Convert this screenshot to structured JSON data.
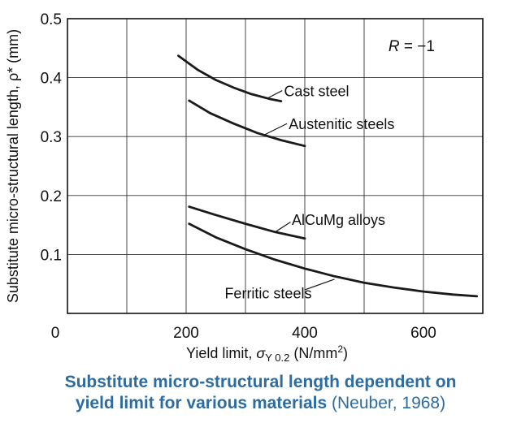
{
  "caption": {
    "line1": "Substitute micro-structural length dependent on",
    "line2_bold": "yield limit for various materials",
    "line2_citation": " (Neuber, 1968)"
  },
  "chart_data": {
    "type": "line",
    "title": "",
    "xlabel": {
      "main": "Yield limit, ",
      "symbol": "σ",
      "subscript": "Y 0.2",
      "unit_open": " (N/mm",
      "unit_exp": "2",
      "unit_close": ")"
    },
    "ylabel": "Substitute micro-structural length, ρ* (mm)",
    "xlim": [
      0,
      700
    ],
    "ylim": [
      0,
      0.5
    ],
    "xticks": [
      0,
      200,
      400,
      600
    ],
    "xtick_labels": [
      "0",
      "200",
      "400",
      "600"
    ],
    "yticks": [
      0.1,
      0.2,
      0.3,
      0.4,
      0.5
    ],
    "ytick_labels": [
      "0.1",
      "0.2",
      "0.3",
      "0.4",
      "0.5"
    ],
    "grid": true,
    "grid_x_step": 100,
    "grid_y_step": 0.1,
    "annotation": {
      "text": "R = −1",
      "italic_part": "R",
      "rest": " = −1",
      "x": 580,
      "y": 0.445
    },
    "series": [
      {
        "name": "Cast steel",
        "x": [
          187,
          220,
          250,
          280,
          310,
          340,
          360
        ],
        "y": [
          0.437,
          0.413,
          0.396,
          0.383,
          0.372,
          0.364,
          0.36
        ],
        "label_x": 365,
        "label_y": 0.378,
        "pointer": [
          [
            362,
            0.378
          ],
          [
            335,
            0.364
          ]
        ]
      },
      {
        "name": "Austenitic steels",
        "x": [
          205,
          240,
          280,
          320,
          360,
          400
        ],
        "y": [
          0.361,
          0.34,
          0.322,
          0.306,
          0.294,
          0.284
        ],
        "label_x": 373,
        "label_y": 0.322,
        "pointer": [
          [
            370,
            0.322
          ],
          [
            330,
            0.302
          ]
        ]
      },
      {
        "name": "AlCuMg alloys",
        "x": [
          205,
          250,
          300,
          350,
          400
        ],
        "y": [
          0.181,
          0.167,
          0.152,
          0.138,
          0.127
        ],
        "label_x": 378,
        "label_y": 0.16,
        "pointer": [
          [
            376,
            0.155
          ],
          [
            350,
            0.138
          ]
        ]
      },
      {
        "name": "Ferritic steels",
        "x": [
          205,
          250,
          300,
          350,
          400,
          450,
          500,
          550,
          600,
          650,
          690
        ],
        "y": [
          0.152,
          0.129,
          0.109,
          0.091,
          0.076,
          0.063,
          0.052,
          0.044,
          0.037,
          0.032,
          0.029
        ],
        "label_x": 265,
        "label_y": 0.035,
        "pointer": [
          [
            400,
            0.04
          ],
          [
            450,
            0.058
          ]
        ]
      }
    ]
  }
}
